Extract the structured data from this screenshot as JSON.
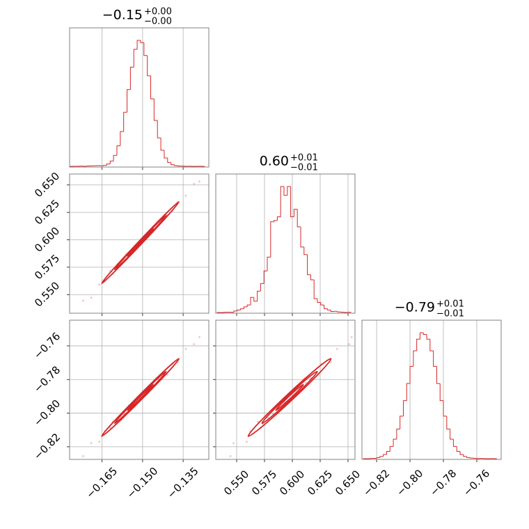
{
  "chart_data": [
    {
      "type": "histogram",
      "title": "−0.15",
      "title_upper": "+0.00",
      "title_lower": "−0.00",
      "color": "#d62728",
      "grid": "x",
      "bins": [
        -0.177,
        -0.17575,
        -0.1745,
        -0.17325,
        -0.172,
        -0.17075,
        -0.1695,
        -0.16825,
        -0.167,
        -0.16575,
        -0.1645,
        -0.16325,
        -0.162,
        -0.16075,
        -0.1595,
        -0.15825,
        -0.157,
        -0.15575,
        -0.1545,
        -0.15325,
        -0.152,
        -0.15075,
        -0.1495,
        -0.14825,
        -0.147,
        -0.14575,
        -0.1445,
        -0.14325,
        -0.142,
        -0.14075,
        -0.1395,
        -0.13825,
        -0.137,
        -0.13575,
        -0.1345,
        -0.13325,
        -0.132,
        -0.13075,
        -0.1295,
        -0.12825,
        -0.127
      ],
      "counts": [
        0,
        1,
        1,
        2,
        1,
        3,
        4,
        5,
        6,
        5,
        8,
        19,
        42,
        87,
        162,
        275,
        428,
        607,
        784,
        925,
        996,
        978,
        876,
        716,
        534,
        363,
        225,
        127,
        66,
        31,
        13,
        6,
        3,
        2,
        1,
        1,
        0,
        0,
        1,
        0
      ],
      "xlim": [
        -0.177,
        -0.1255
      ],
      "xticks": [
        {
          "value": -0.165,
          "label": "−0.165"
        },
        {
          "value": -0.15,
          "label": "−0.150"
        },
        {
          "value": -0.135,
          "label": "−0.135"
        }
      ]
    },
    {
      "type": "histogram",
      "title": "0.60",
      "title_upper": "+0.01",
      "title_lower": "−0.01",
      "color": "#d62728",
      "grid": "x",
      "bins": [
        0.5325,
        0.5355,
        0.5385,
        0.5415,
        0.5445,
        0.5475,
        0.5505,
        0.5535,
        0.5565,
        0.5595,
        0.5625,
        0.5655,
        0.5685,
        0.5715,
        0.5745,
        0.5775,
        0.5805,
        0.5835,
        0.5865,
        0.5895,
        0.5925,
        0.5955,
        0.5985,
        0.6015,
        0.6045,
        0.6075,
        0.6105,
        0.6135,
        0.6165,
        0.6195,
        0.6225,
        0.6255,
        0.6285,
        0.6315,
        0.6345,
        0.6375,
        0.6405,
        0.6435,
        0.6465,
        0.6495,
        0.6525
      ],
      "counts": [
        1,
        0,
        2,
        3,
        2,
        12,
        20,
        30,
        45,
        60,
        120,
        90,
        170,
        230,
        330,
        440,
        720,
        730,
        760,
        1000,
        930,
        1000,
        760,
        820,
        680,
        520,
        460,
        300,
        260,
        110,
        80,
        60,
        30,
        20,
        8,
        10,
        5,
        3,
        1,
        2
      ],
      "xlim": [
        0.53125,
        0.65625
      ],
      "xticks": [
        {
          "value": 0.55,
          "label": "0.550"
        },
        0.575,
        {
          "value": 0.6,
          "label": "0.600"
        },
        0.625,
        {
          "value": 0.65,
          "label": "0.650"
        }
      ]
    },
    {
      "type": "histogram",
      "title": "−0.79",
      "title_upper": "+0.01",
      "title_lower": "−0.01",
      "color": "#d62728",
      "grid": "x",
      "bins": [
        -0.828,
        -0.826,
        -0.824,
        -0.822,
        -0.82,
        -0.818,
        -0.816,
        -0.814,
        -0.812,
        -0.81,
        -0.808,
        -0.806,
        -0.804,
        -0.802,
        -0.8,
        -0.798,
        -0.796,
        -0.794,
        -0.792,
        -0.79,
        -0.788,
        -0.786,
        -0.784,
        -0.782,
        -0.78,
        -0.778,
        -0.776,
        -0.774,
        -0.772,
        -0.77,
        -0.768,
        -0.766,
        -0.764,
        -0.762,
        -0.76,
        -0.758,
        -0.756,
        -0.754,
        -0.752,
        -0.75,
        -0.748
      ],
      "counts": [
        1,
        0,
        2,
        3,
        8,
        18,
        33,
        58,
        97,
        154,
        234,
        336,
        458,
        593,
        728,
        851,
        943,
        994,
        980,
        943,
        851,
        728,
        593,
        458,
        336,
        234,
        154,
        97,
        58,
        33,
        18,
        9,
        5,
        3,
        1,
        2,
        1,
        0,
        1,
        0
      ],
      "xlim": [
        -0.8288,
        -0.7454
      ],
      "xticks": [
        {
          "value": -0.82,
          "label": "−0.82"
        },
        {
          "value": -0.8,
          "label": "−0.80"
        },
        {
          "value": -0.78,
          "label": "−0.78"
        },
        {
          "value": -0.76,
          "label": "−0.76"
        }
      ]
    },
    {
      "type": "scatter",
      "color": "#d62728",
      "grid": "both",
      "x": [
        -0.172,
        -0.169,
        -0.166,
        -0.164,
        -0.162,
        -0.161,
        -0.16,
        -0.159,
        -0.158,
        -0.157,
        -0.156,
        -0.156,
        -0.155,
        -0.154,
        -0.154,
        -0.153,
        -0.153,
        -0.152,
        -0.152,
        -0.151,
        -0.151,
        -0.15,
        -0.15,
        -0.149,
        -0.149,
        -0.148,
        -0.148,
        -0.147,
        -0.146,
        -0.146,
        -0.145,
        -0.144,
        -0.143,
        -0.142,
        -0.141,
        -0.139,
        -0.137,
        -0.134,
        -0.131,
        -0.129
      ],
      "y": [
        0.5444,
        0.5472,
        0.559,
        0.5622,
        0.5714,
        0.569,
        0.5736,
        0.5782,
        0.5778,
        0.5824,
        0.582,
        0.587,
        0.5866,
        0.5882,
        0.5912,
        0.5898,
        0.5928,
        0.5944,
        0.5934,
        0.599,
        0.595,
        0.6006,
        0.5986,
        0.6022,
        0.6042,
        0.6028,
        0.6058,
        0.6064,
        0.612,
        0.61,
        0.6106,
        0.6162,
        0.6168,
        0.6224,
        0.623,
        0.6262,
        0.6344,
        0.6402,
        0.651,
        0.6532
      ],
      "xlim": [
        -0.177,
        -0.1255
      ],
      "ylim": [
        0.533,
        0.66
      ],
      "xticks": [
        {
          "value": -0.165,
          "label": "−0.165"
        },
        {
          "value": -0.15,
          "label": "−0.150"
        },
        {
          "value": -0.135,
          "label": "−0.135"
        }
      ],
      "yticks": [
        {
          "value": 0.55,
          "label": "0.550"
        },
        0.575,
        {
          "value": 0.6,
          "label": "0.600"
        },
        0.625,
        {
          "value": 0.65,
          "label": "0.650"
        }
      ]
    },
    {
      "type": "scatter",
      "color": "#d62728",
      "grid": "both",
      "x": [
        -0.172,
        -0.169,
        -0.166,
        -0.164,
        -0.162,
        -0.161,
        -0.16,
        -0.159,
        -0.158,
        -0.157,
        -0.156,
        -0.156,
        -0.155,
        -0.154,
        -0.154,
        -0.153,
        -0.153,
        -0.152,
        -0.152,
        -0.151,
        -0.151,
        -0.15,
        -0.15,
        -0.149,
        -0.149,
        -0.148,
        -0.148,
        -0.147,
        -0.146,
        -0.146,
        -0.145,
        -0.144,
        -0.143,
        -0.142,
        -0.141,
        -0.139,
        -0.137,
        -0.134,
        -0.131,
        -0.129
      ],
      "y": [
        -0.8256,
        -0.8178,
        -0.817,
        -0.8108,
        -0.8086,
        -0.805,
        -0.8064,
        -0.8028,
        -0.8042,
        -0.8006,
        -0.798,
        -0.8,
        -0.7954,
        -0.7968,
        -0.7958,
        -0.7932,
        -0.7962,
        -0.7916,
        -0.7936,
        -0.791,
        -0.79,
        -0.7904,
        -0.7874,
        -0.7888,
        -0.7878,
        -0.7852,
        -0.7882,
        -0.7846,
        -0.782,
        -0.784,
        -0.7794,
        -0.7798,
        -0.7792,
        -0.7756,
        -0.777,
        -0.7708,
        -0.7696,
        -0.7618,
        -0.759,
        -0.7548
      ],
      "xlim": [
        -0.177,
        -0.1255
      ],
      "ylim": [
        -0.8275,
        -0.7447
      ],
      "xticks": [
        {
          "value": -0.165,
          "label": "−0.165"
        },
        {
          "value": -0.15,
          "label": "−0.150"
        },
        {
          "value": -0.135,
          "label": "−0.135"
        }
      ],
      "yticks": [
        {
          "value": -0.82,
          "label": "−0.82"
        },
        {
          "value": -0.8,
          "label": "−0.80"
        },
        {
          "value": -0.78,
          "label": "−0.78"
        },
        {
          "value": -0.76,
          "label": "−0.76"
        }
      ]
    },
    {
      "type": "scatter",
      "color": "#d62728",
      "grid": "both",
      "x": [
        0.5444,
        0.5472,
        0.559,
        0.5622,
        0.5714,
        0.569,
        0.5736,
        0.5782,
        0.5778,
        0.5824,
        0.582,
        0.587,
        0.5866,
        0.5882,
        0.5912,
        0.5898,
        0.5928,
        0.5944,
        0.5934,
        0.599,
        0.595,
        0.6006,
        0.5986,
        0.6022,
        0.6042,
        0.6028,
        0.6058,
        0.6064,
        0.612,
        0.61,
        0.6106,
        0.6162,
        0.6168,
        0.6224,
        0.623,
        0.6262,
        0.6344,
        0.6402,
        0.651,
        0.6532
      ],
      "y": [
        -0.8256,
        -0.8178,
        -0.817,
        -0.8108,
        -0.8086,
        -0.805,
        -0.8064,
        -0.8028,
        -0.8042,
        -0.8006,
        -0.798,
        -0.8,
        -0.7954,
        -0.7968,
        -0.7958,
        -0.7932,
        -0.7962,
        -0.7916,
        -0.7936,
        -0.791,
        -0.79,
        -0.7904,
        -0.7874,
        -0.7888,
        -0.7878,
        -0.7852,
        -0.7882,
        -0.7846,
        -0.782,
        -0.784,
        -0.7794,
        -0.7798,
        -0.7792,
        -0.7756,
        -0.777,
        -0.7708,
        -0.7696,
        -0.7618,
        -0.759,
        -0.7548
      ],
      "xlim": [
        0.53125,
        0.65625
      ],
      "ylim": [
        -0.8275,
        -0.7447
      ],
      "xticks": [
        {
          "value": 0.55,
          "label": "0.550"
        },
        0.575,
        {
          "value": 0.6,
          "label": "0.600"
        },
        0.625,
        {
          "value": 0.65,
          "label": "0.650"
        }
      ],
      "yticks": [
        {
          "value": -0.82,
          "label": "−0.82"
        },
        {
          "value": -0.8,
          "label": "−0.80"
        },
        {
          "value": -0.78,
          "label": "−0.78"
        },
        {
          "value": -0.76,
          "label": "−0.76"
        }
      ]
    }
  ]
}
